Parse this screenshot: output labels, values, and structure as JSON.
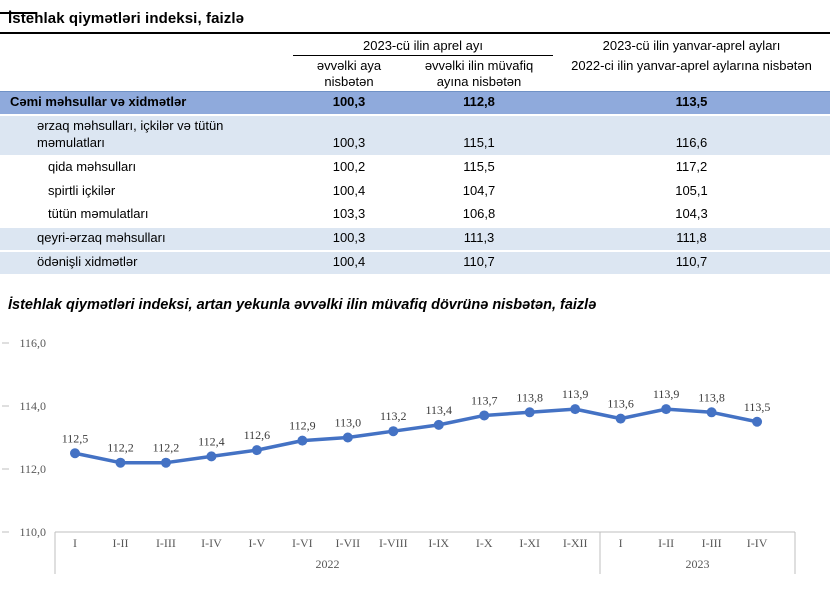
{
  "document": {
    "title": "İstehlak qiymətləri indeksi, faizlə"
  },
  "table": {
    "group_header": "2023-cü ilin aprel ayı",
    "col1_header": "əvvəlki aya nisbətən",
    "col2_header": "əvvəlki ilin müvafiq ayına nisbətən",
    "col3_header_line1": "2023-cü ilin yanvar-aprel ayları",
    "col3_header_line2": "2022-ci ilin yanvar-aprel aylarına nisbətən",
    "rows": [
      {
        "label": "Cəmi məhsullar və xidmətlər",
        "c1": "100,3",
        "c2": "112,8",
        "c3": "113,5"
      },
      {
        "label": "ərzaq məhsulları, içkilər və tütün məmulatları",
        "c1": "100,3",
        "c2": "115,1",
        "c3": "116,6"
      },
      {
        "label": "qida məhsulları",
        "c1": "100,2",
        "c2": "115,5",
        "c3": "117,2"
      },
      {
        "label": "spirtli içkilər",
        "c1": "100,4",
        "c2": "104,7",
        "c3": "105,1"
      },
      {
        "label": "tütün məmulatları",
        "c1": "103,3",
        "c2": "106,8",
        "c3": "104,3"
      },
      {
        "label": "qeyri-ərzaq məhsulları",
        "c1": "100,3",
        "c2": "111,3",
        "c3": "111,8"
      },
      {
        "label": "ödənişli xidmətlər",
        "c1": "100,4",
        "c2": "110,7",
        "c3": "110,7"
      }
    ]
  },
  "chart_data": {
    "type": "line",
    "title": "İstehlak qiymətləri indeksi, artan yekunla əvvəlki ilin müvafiq dövrünə nisbətən, faizlə",
    "categories": [
      "I",
      "I-II",
      "I-III",
      "I-IV",
      "I-V",
      "I-VI",
      "I-VII",
      "I-VIII",
      "I-IX",
      "I-X",
      "I-XI",
      "I-XII",
      "I",
      "I-II",
      "I-III",
      "I-IV"
    ],
    "group_labels": [
      "2022",
      "2023"
    ],
    "group_sizes": [
      12,
      4
    ],
    "values": [
      112.5,
      112.2,
      112.2,
      112.4,
      112.6,
      112.9,
      113.0,
      113.2,
      113.4,
      113.7,
      113.8,
      113.9,
      113.6,
      113.9,
      113.8,
      113.5
    ],
    "point_labels": [
      "112,5",
      "112,2",
      "112,2",
      "112,4",
      "112,6",
      "112,9",
      "113,0",
      "113,2",
      "113,4",
      "113,7",
      "113,8",
      "113,9",
      "113,6",
      "113,9",
      "113,8",
      "113,5"
    ],
    "ylim": [
      110,
      116
    ],
    "ytick_step": 2,
    "ytick_labels": [
      "110,0",
      "112,0",
      "114,0",
      "116,0"
    ],
    "grid": false,
    "legend": "none"
  },
  "colors": {
    "series_line": "#4472C4",
    "total_row_bg": "#8FAADC",
    "light_row_bg": "#DCE6F2",
    "axis_line": "#BFBFBF",
    "axis_text": "#595959",
    "point_label_text": "#3b3b3b"
  }
}
